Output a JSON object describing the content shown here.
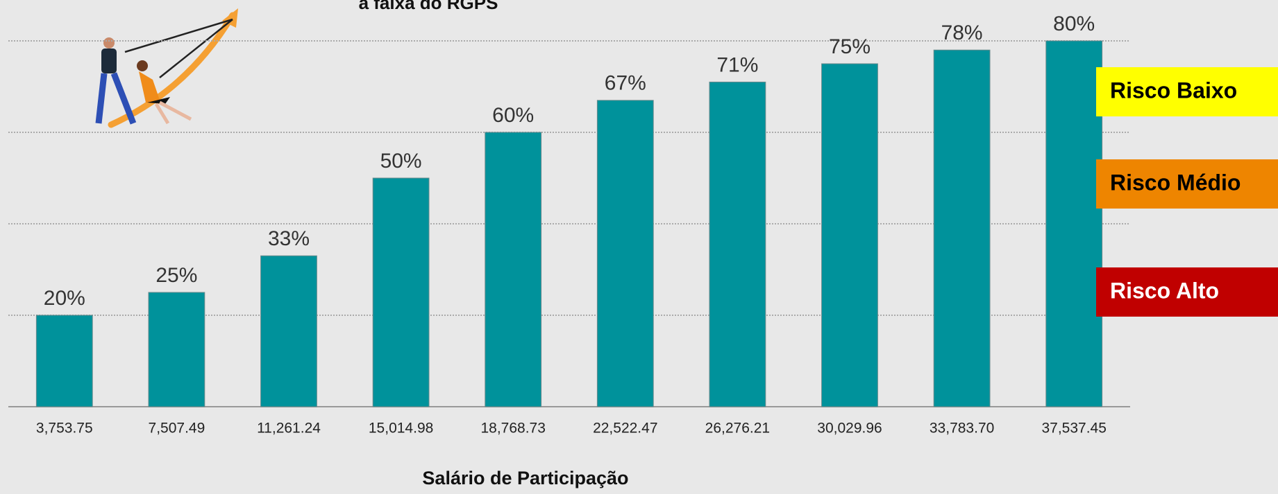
{
  "chart_data": {
    "type": "bar",
    "title": "a faixa do RGPS",
    "x_label": "Salário de Participação",
    "categories": [
      "3,753.75",
      "7,507.49",
      "11,261.24",
      "15,014.98",
      "18,768.73",
      "22,522.47",
      "26,276.21",
      "30,029.96",
      "33,783.70",
      "37,537.45"
    ],
    "values": [
      20,
      25,
      33,
      50,
      60,
      67,
      71,
      75,
      78,
      80
    ],
    "value_labels": [
      "20%",
      "25%",
      "33%",
      "50%",
      "60%",
      "67%",
      "71%",
      "75%",
      "78%",
      "80%"
    ],
    "color": "#00929b",
    "ylim": [
      0,
      80
    ],
    "yticks": [
      0,
      20,
      40,
      60,
      80
    ],
    "grid": true,
    "legend": [
      {
        "label": "Risco Baixo",
        "color": "#ffff00",
        "text_color": "#000000"
      },
      {
        "label": "Risco Médio",
        "color": "#ee8500",
        "text_color": "#000000"
      },
      {
        "label": "Risco Alto",
        "color": "#c00000",
        "text_color": "#ffffff"
      }
    ]
  }
}
